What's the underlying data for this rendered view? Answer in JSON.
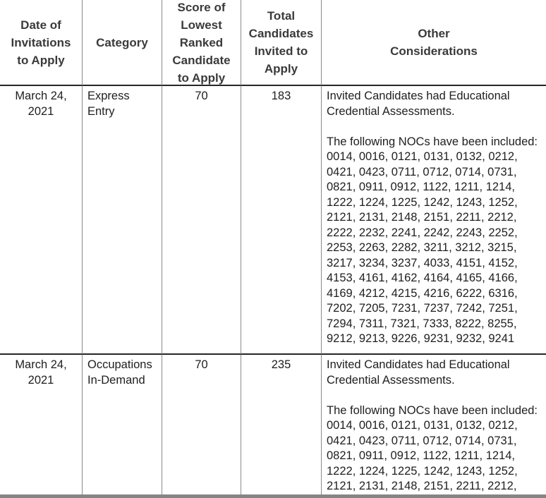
{
  "table": {
    "title": "Invitations to Apply rounds",
    "columns": [
      {
        "label": "Date of\nInvitations\nto Apply"
      },
      {
        "label": "Category"
      },
      {
        "label": "Score of\nLowest\nRanked\nCandidate\nto Apply"
      },
      {
        "label": "Total\nCandidates\nInvited to\nApply"
      },
      {
        "label": "Other\nConsiderations"
      }
    ],
    "rows": [
      {
        "date": "March 24,\n2021",
        "category": "Express\nEntry",
        "score": "70",
        "total": "183",
        "other": "Invited Candidates had Educational\nCredential Assessments.\n\nThe following NOCs have been included:\n0014, 0016, 0121, 0131, 0132, 0212,\n0421, 0423, 0711, 0712, 0714, 0731,\n0821, 0911, 0912, 1122, 1211, 1214,\n1222, 1224, 1225, 1242, 1243, 1252,\n2121, 2131, 2148, 2151, 2211, 2212,\n2222, 2232, 2241, 2242, 2243, 2252,\n2253, 2263, 2282, 3211, 3212, 3215,\n3217, 3234, 3237, 4033, 4151, 4152,\n4153, 4161, 4162, 4164, 4165, 4166,\n4169, 4212, 4215, 4216, 6222, 6316,\n7202, 7205, 7231, 7237, 7242, 7251,\n7294, 7311, 7321, 7333, 8222, 8255,\n9212, 9213, 9226, 9231, 9232, 9241"
      },
      {
        "date": "March 24,\n2021",
        "category": "Occupations\nIn-Demand",
        "score": "70",
        "total": "235",
        "other": "Invited Candidates had Educational\nCredential Assessments.\n\nThe following NOCs have been included:\n0014, 0016, 0121, 0131, 0132, 0212,\n0421, 0423, 0711, 0712, 0714, 0731,\n0821, 0911, 0912, 1122, 1211, 1214,\n1222, 1224, 1225, 1242, 1243, 1252,\n2121, 2131, 2148, 2151, 2211, 2212,"
      }
    ]
  },
  "colors": {
    "gridline_vertical": "#8a8a8a",
    "gridline_horizontal": "#262626",
    "header_text": "#3a3a3a",
    "body_text": "#202020",
    "bottom_band": "#858585",
    "background": "#ffffff"
  }
}
